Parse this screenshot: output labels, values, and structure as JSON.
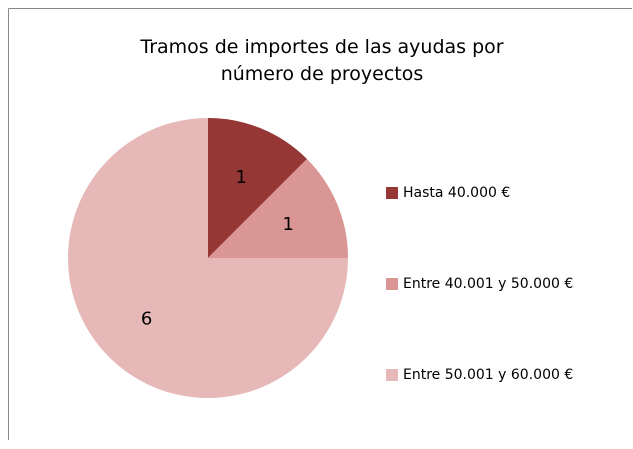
{
  "chart_data": {
    "type": "pie",
    "title": "Tramos de importes de las ayudas por número de proyectos",
    "categories": [
      "Hasta 40.000 €",
      "Entre 40.001 y 50.000 €",
      "Entre 50.001 y 60.000 €"
    ],
    "values": [
      1,
      1,
      6
    ],
    "colors": [
      "#953735",
      "#d99694",
      "#e6b9b8"
    ],
    "legend": "right"
  }
}
